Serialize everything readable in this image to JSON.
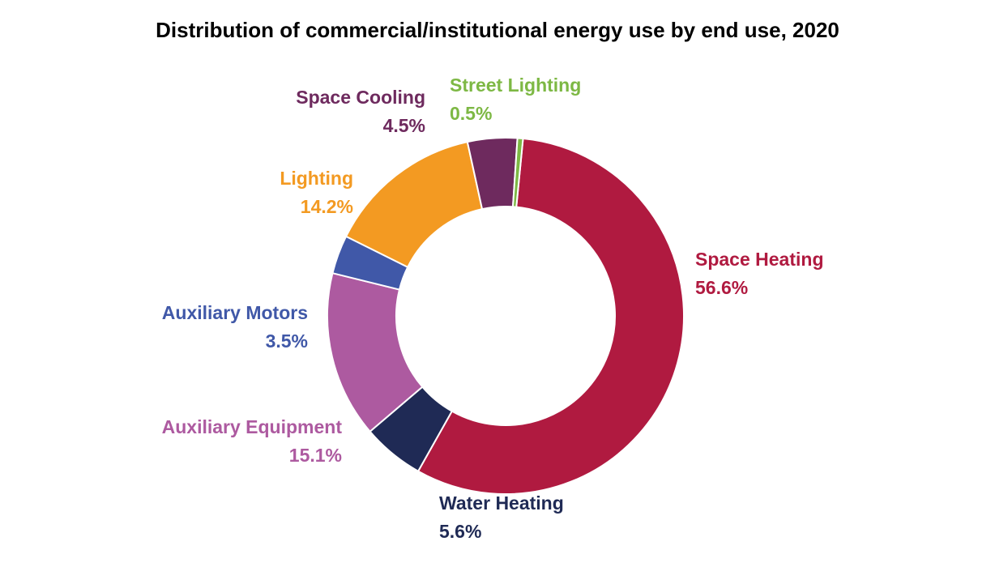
{
  "chart_data": {
    "type": "pie",
    "variant": "donut",
    "title": "Distribution of commercial/institutional energy use by end use, 2020",
    "unit": "%",
    "slices": [
      {
        "name": "Space Heating",
        "value": 56.6,
        "label": "56.6%",
        "color": "#B01A40"
      },
      {
        "name": "Water Heating",
        "value": 5.6,
        "label": "5.6%",
        "color": "#1F2A55"
      },
      {
        "name": "Auxiliary Equipment",
        "value": 15.1,
        "label": "15.1%",
        "color": "#AD5AA0"
      },
      {
        "name": "Auxiliary Motors",
        "value": 3.5,
        "label": "3.5%",
        "color": "#4058A8"
      },
      {
        "name": "Lighting",
        "value": 14.2,
        "label": "14.2%",
        "color": "#F39A22"
      },
      {
        "name": "Space Cooling",
        "value": 4.5,
        "label": "4.5%",
        "color": "#6E2A5E"
      },
      {
        "name": "Street Lighting",
        "value": 0.5,
        "label": "0.5%",
        "color": "#7DB844"
      }
    ]
  }
}
